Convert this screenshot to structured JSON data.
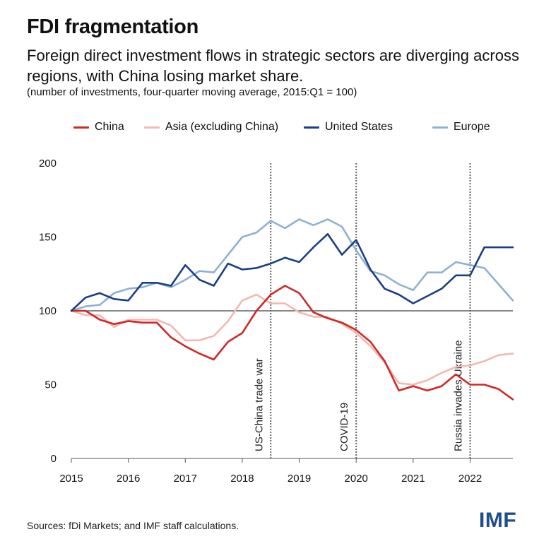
{
  "header": {
    "title": "FDI fragmentation",
    "subtitle": "Foreign direct investment flows in strategic sectors are diverging across regions, with China losing market share.",
    "note": "(number of investments, four-quarter moving average, 2015:Q1 = 100)"
  },
  "footer": {
    "source": "Sources: fDi Markets; and IMF staff calculations.",
    "logo": "IMF"
  },
  "chart_data": {
    "type": "line",
    "title": "FDI fragmentation",
    "xlabel": "",
    "ylabel": "",
    "xlim": [
      2015,
      2022.75
    ],
    "ylim": [
      0,
      200
    ],
    "xticks": [
      2015,
      2016,
      2017,
      2018,
      2019,
      2020,
      2021,
      2022
    ],
    "yticks": [
      0,
      50,
      100,
      150,
      200
    ],
    "baseline": 100,
    "grid": false,
    "legend_position": "top",
    "x": [
      "2015:Q1",
      "2015:Q2",
      "2015:Q3",
      "2015:Q4",
      "2016:Q1",
      "2016:Q2",
      "2016:Q3",
      "2016:Q4",
      "2017:Q1",
      "2017:Q2",
      "2017:Q3",
      "2017:Q4",
      "2018:Q1",
      "2018:Q2",
      "2018:Q3",
      "2018:Q4",
      "2019:Q1",
      "2019:Q2",
      "2019:Q3",
      "2019:Q4",
      "2020:Q1",
      "2020:Q2",
      "2020:Q3",
      "2020:Q4",
      "2021:Q1",
      "2021:Q2",
      "2021:Q3",
      "2021:Q4",
      "2022:Q1",
      "2022:Q2",
      "2022:Q3",
      "2022:Q4"
    ],
    "series": [
      {
        "name": "China",
        "color": "#cc2a27",
        "values": [
          100,
          100,
          94,
          91,
          93,
          92,
          92,
          82,
          76,
          71,
          67,
          79,
          85,
          100,
          111,
          117,
          112,
          99,
          95,
          92,
          87,
          79,
          66,
          46,
          49,
          46,
          49,
          57,
          50,
          50,
          47,
          40
        ]
      },
      {
        "name": "Asia (excluding China)",
        "color": "#f2b8b3",
        "values": [
          100,
          97,
          97,
          89,
          94,
          94,
          94,
          90,
          80,
          80,
          83,
          93,
          107,
          111,
          105,
          105,
          99,
          96,
          96,
          91,
          85,
          76,
          65,
          51,
          50,
          53,
          58,
          62,
          63,
          66,
          70,
          71
        ]
      },
      {
        "name": "United States",
        "color": "#1b3f84",
        "values": [
          100,
          109,
          112,
          108,
          107,
          119,
          119,
          117,
          131,
          121,
          117,
          132,
          128,
          129,
          132,
          136,
          133,
          143,
          152,
          138,
          148,
          128,
          115,
          111,
          105,
          110,
          115,
          124,
          124,
          143,
          143,
          143
        ]
      },
      {
        "name": "Europe",
        "color": "#8fb0d6",
        "values": [
          100,
          103,
          104,
          112,
          115,
          116,
          119,
          116,
          121,
          127,
          126,
          138,
          150,
          153,
          161,
          156,
          162,
          158,
          162,
          157,
          141,
          127,
          124,
          118,
          114,
          126,
          126,
          133,
          131,
          129,
          118,
          107
        ]
      }
    ],
    "events": [
      {
        "x": 2018.5,
        "label": "US-China trade war"
      },
      {
        "x": 2020.0,
        "label": "COVID-19"
      },
      {
        "x": 2022.0,
        "label": "Russia invades Ukraine"
      }
    ]
  }
}
